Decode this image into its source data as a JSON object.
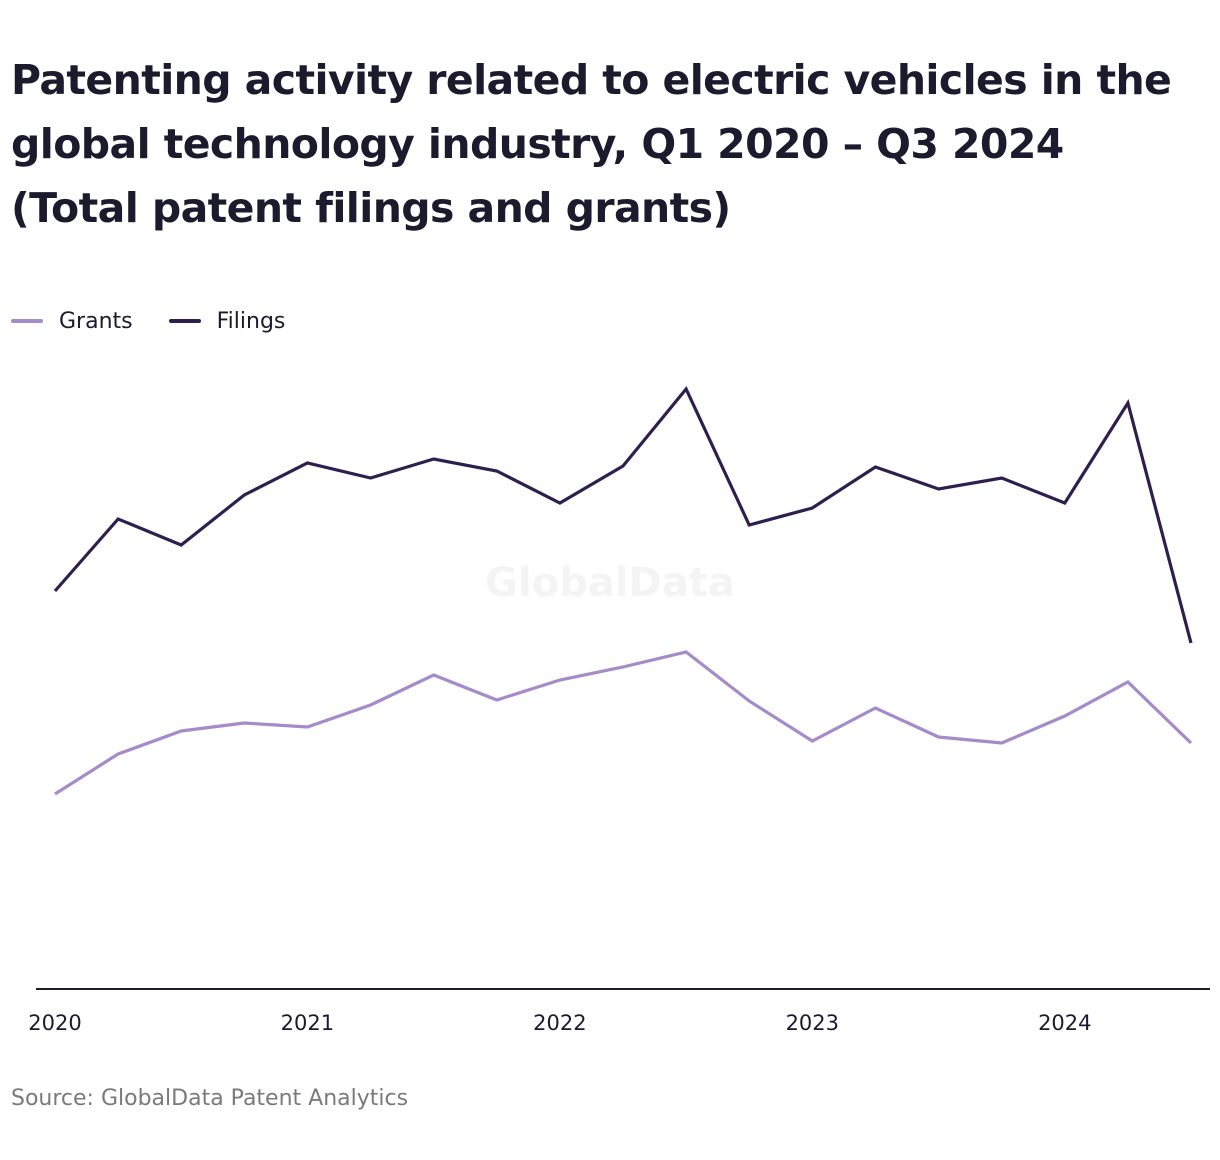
{
  "title": "Patenting activity related to electric vehicles in the global technology industry, Q1 2020 – Q3 2024 (Total patent filings and grants)",
  "source": "Source: GlobalData Patent Analytics",
  "watermark": "GlobalData",
  "colors": {
    "grants": "#a58bc9",
    "filings": "#2e1f4f",
    "axis": "#1c1b2e"
  },
  "chart_data": {
    "type": "line",
    "x": [
      "Q1 2020",
      "Q2 2020",
      "Q3 2020",
      "Q4 2020",
      "Q1 2021",
      "Q2 2021",
      "Q3 2021",
      "Q4 2021",
      "Q1 2022",
      "Q2 2022",
      "Q3 2022",
      "Q4 2022",
      "Q1 2023",
      "Q2 2023",
      "Q3 2023",
      "Q4 2023",
      "Q1 2024",
      "Q2 2024",
      "Q3 2024"
    ],
    "xtick_labels": [
      "2020",
      "2021",
      "2022",
      "2023",
      "2024"
    ],
    "xtick_index": [
      0,
      4,
      8,
      12,
      16
    ],
    "y_axis_labels": "none",
    "legend_position": "top-left",
    "grid": false,
    "series": [
      {
        "name": "Grants",
        "color": "#a58bc9",
        "values": [
          195,
          235,
          258,
          266,
          262,
          284,
          314,
          289,
          309,
          322,
          337,
          288,
          248,
          281,
          252,
          246,
          273,
          307,
          246
        ]
      },
      {
        "name": "Filings",
        "color": "#2e1f4f",
        "values": [
          398,
          470,
          444,
          494,
          526,
          511,
          530,
          518,
          486,
          523,
          600,
          464,
          481,
          522,
          500,
          511,
          486,
          586,
          346
        ]
      }
    ]
  }
}
